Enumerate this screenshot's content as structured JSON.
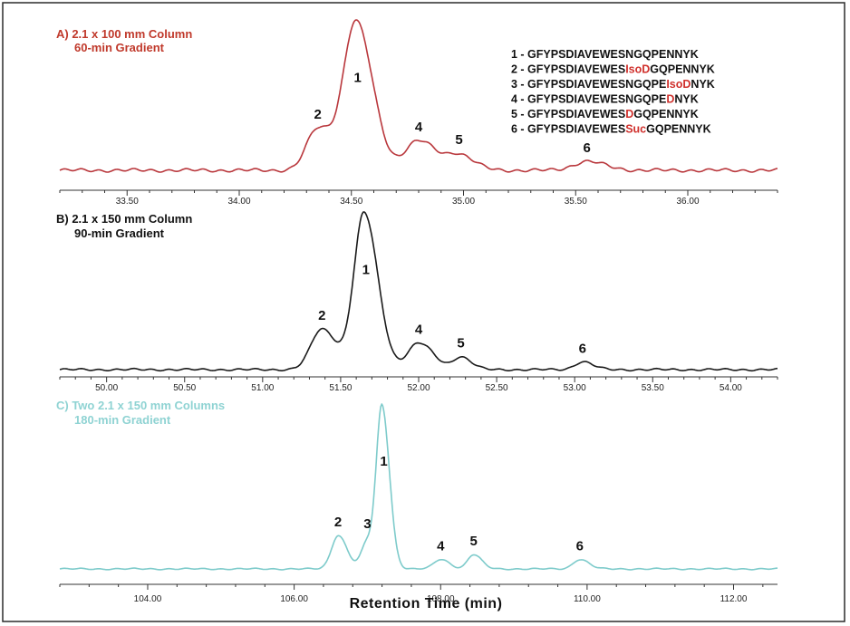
{
  "figure": {
    "xlabel": "Retention Time (min)",
    "legend": [
      {
        "num": "1",
        "pre": "GFYPSDIAVEWESNGQPENNYK",
        "mod": "",
        "post": ""
      },
      {
        "num": "2",
        "pre": "GFYPSDIAVEWES",
        "mod": "IsoD",
        "post": "GQPENNYK"
      },
      {
        "num": "3",
        "pre": "GFYPSDIAVEWESNGQPE",
        "mod": "IsoD",
        "post": "NYK"
      },
      {
        "num": "4",
        "pre": "GFYPSDIAVEWESNGQPE",
        "mod": "D",
        "post": "NYK"
      },
      {
        "num": "5",
        "pre": "GFYPSDIAVEWES",
        "mod": "D",
        "post": "GQPENNYK"
      },
      {
        "num": "6",
        "pre": "GFYPSDIAVEWES",
        "mod": "Suc",
        "post": "GQPENNYK"
      }
    ]
  },
  "chart_data": [
    {
      "type": "line",
      "title_line1": "A) 2.1 x 100 mm Column",
      "title_line2": "60-min Gradient",
      "color": "#b9373c",
      "xlim": [
        33.2,
        36.4
      ],
      "xticks": [
        "33.50",
        "34.00",
        "34.50",
        "35.00",
        "35.50",
        "36.00"
      ],
      "xtick_values": [
        33.5,
        34.0,
        34.5,
        35.0,
        35.5,
        36.0
      ],
      "baseline": 0.05,
      "peaks": [
        {
          "label": "2",
          "x": 34.35,
          "height": 0.28,
          "width": 0.05
        },
        {
          "label": "1",
          "x": 34.52,
          "height": 1.0,
          "width": 0.055
        },
        {
          "label": "4",
          "x": 34.8,
          "height": 0.2,
          "width": 0.06
        },
        {
          "label": "5",
          "x": 34.98,
          "height": 0.1,
          "width": 0.05
        },
        {
          "label": "6",
          "x": 35.55,
          "height": 0.06,
          "width": 0.06
        }
      ]
    },
    {
      "type": "line",
      "title_line1": "B) 2.1 x 150 mm Column",
      "title_line2": "90-min Gradient",
      "color": "#1a1a1a",
      "xlim": [
        49.7,
        54.3
      ],
      "xticks": [
        "50.00",
        "50.50",
        "51.00",
        "51.50",
        "52.00",
        "52.50",
        "53.00",
        "53.50",
        "54.00"
      ],
      "xtick_values": [
        50.0,
        50.5,
        51.0,
        51.5,
        52.0,
        52.5,
        53.0,
        53.5,
        54.0
      ],
      "baseline": 0.03,
      "peaks": [
        {
          "label": "2",
          "x": 51.38,
          "height": 0.26,
          "width": 0.07
        },
        {
          "label": "1",
          "x": 51.65,
          "height": 1.0,
          "width": 0.065
        },
        {
          "label": "4",
          "x": 52.0,
          "height": 0.17,
          "width": 0.07
        },
        {
          "label": "5",
          "x": 52.27,
          "height": 0.08,
          "width": 0.05
        },
        {
          "label": "6",
          "x": 53.05,
          "height": 0.05,
          "width": 0.05
        }
      ]
    },
    {
      "type": "line",
      "title_line1": "C) Two 2.1 x 150 mm Columns",
      "title_line2": "180-min Gradient",
      "color": "#7ecbcb",
      "xlim": [
        102.8,
        112.6
      ],
      "xticks": [
        "104.00",
        "106.00",
        "108.00",
        "110.00",
        "112.00"
      ],
      "xtick_values": [
        104.0,
        106.0,
        108.0,
        110.0,
        112.0
      ],
      "baseline": 0.02,
      "peaks": [
        {
          "label": "2",
          "x": 106.6,
          "height": 0.21,
          "width": 0.09
        },
        {
          "label": "3",
          "x": 107.0,
          "height": 0.17,
          "width": 0.08
        },
        {
          "label": "1",
          "x": 107.2,
          "height": 1.0,
          "width": 0.075
        },
        {
          "label": "4",
          "x": 108.0,
          "height": 0.06,
          "width": 0.09
        },
        {
          "label": "5",
          "x": 108.45,
          "height": 0.09,
          "width": 0.08
        },
        {
          "label": "6",
          "x": 109.9,
          "height": 0.06,
          "width": 0.09
        }
      ]
    }
  ]
}
